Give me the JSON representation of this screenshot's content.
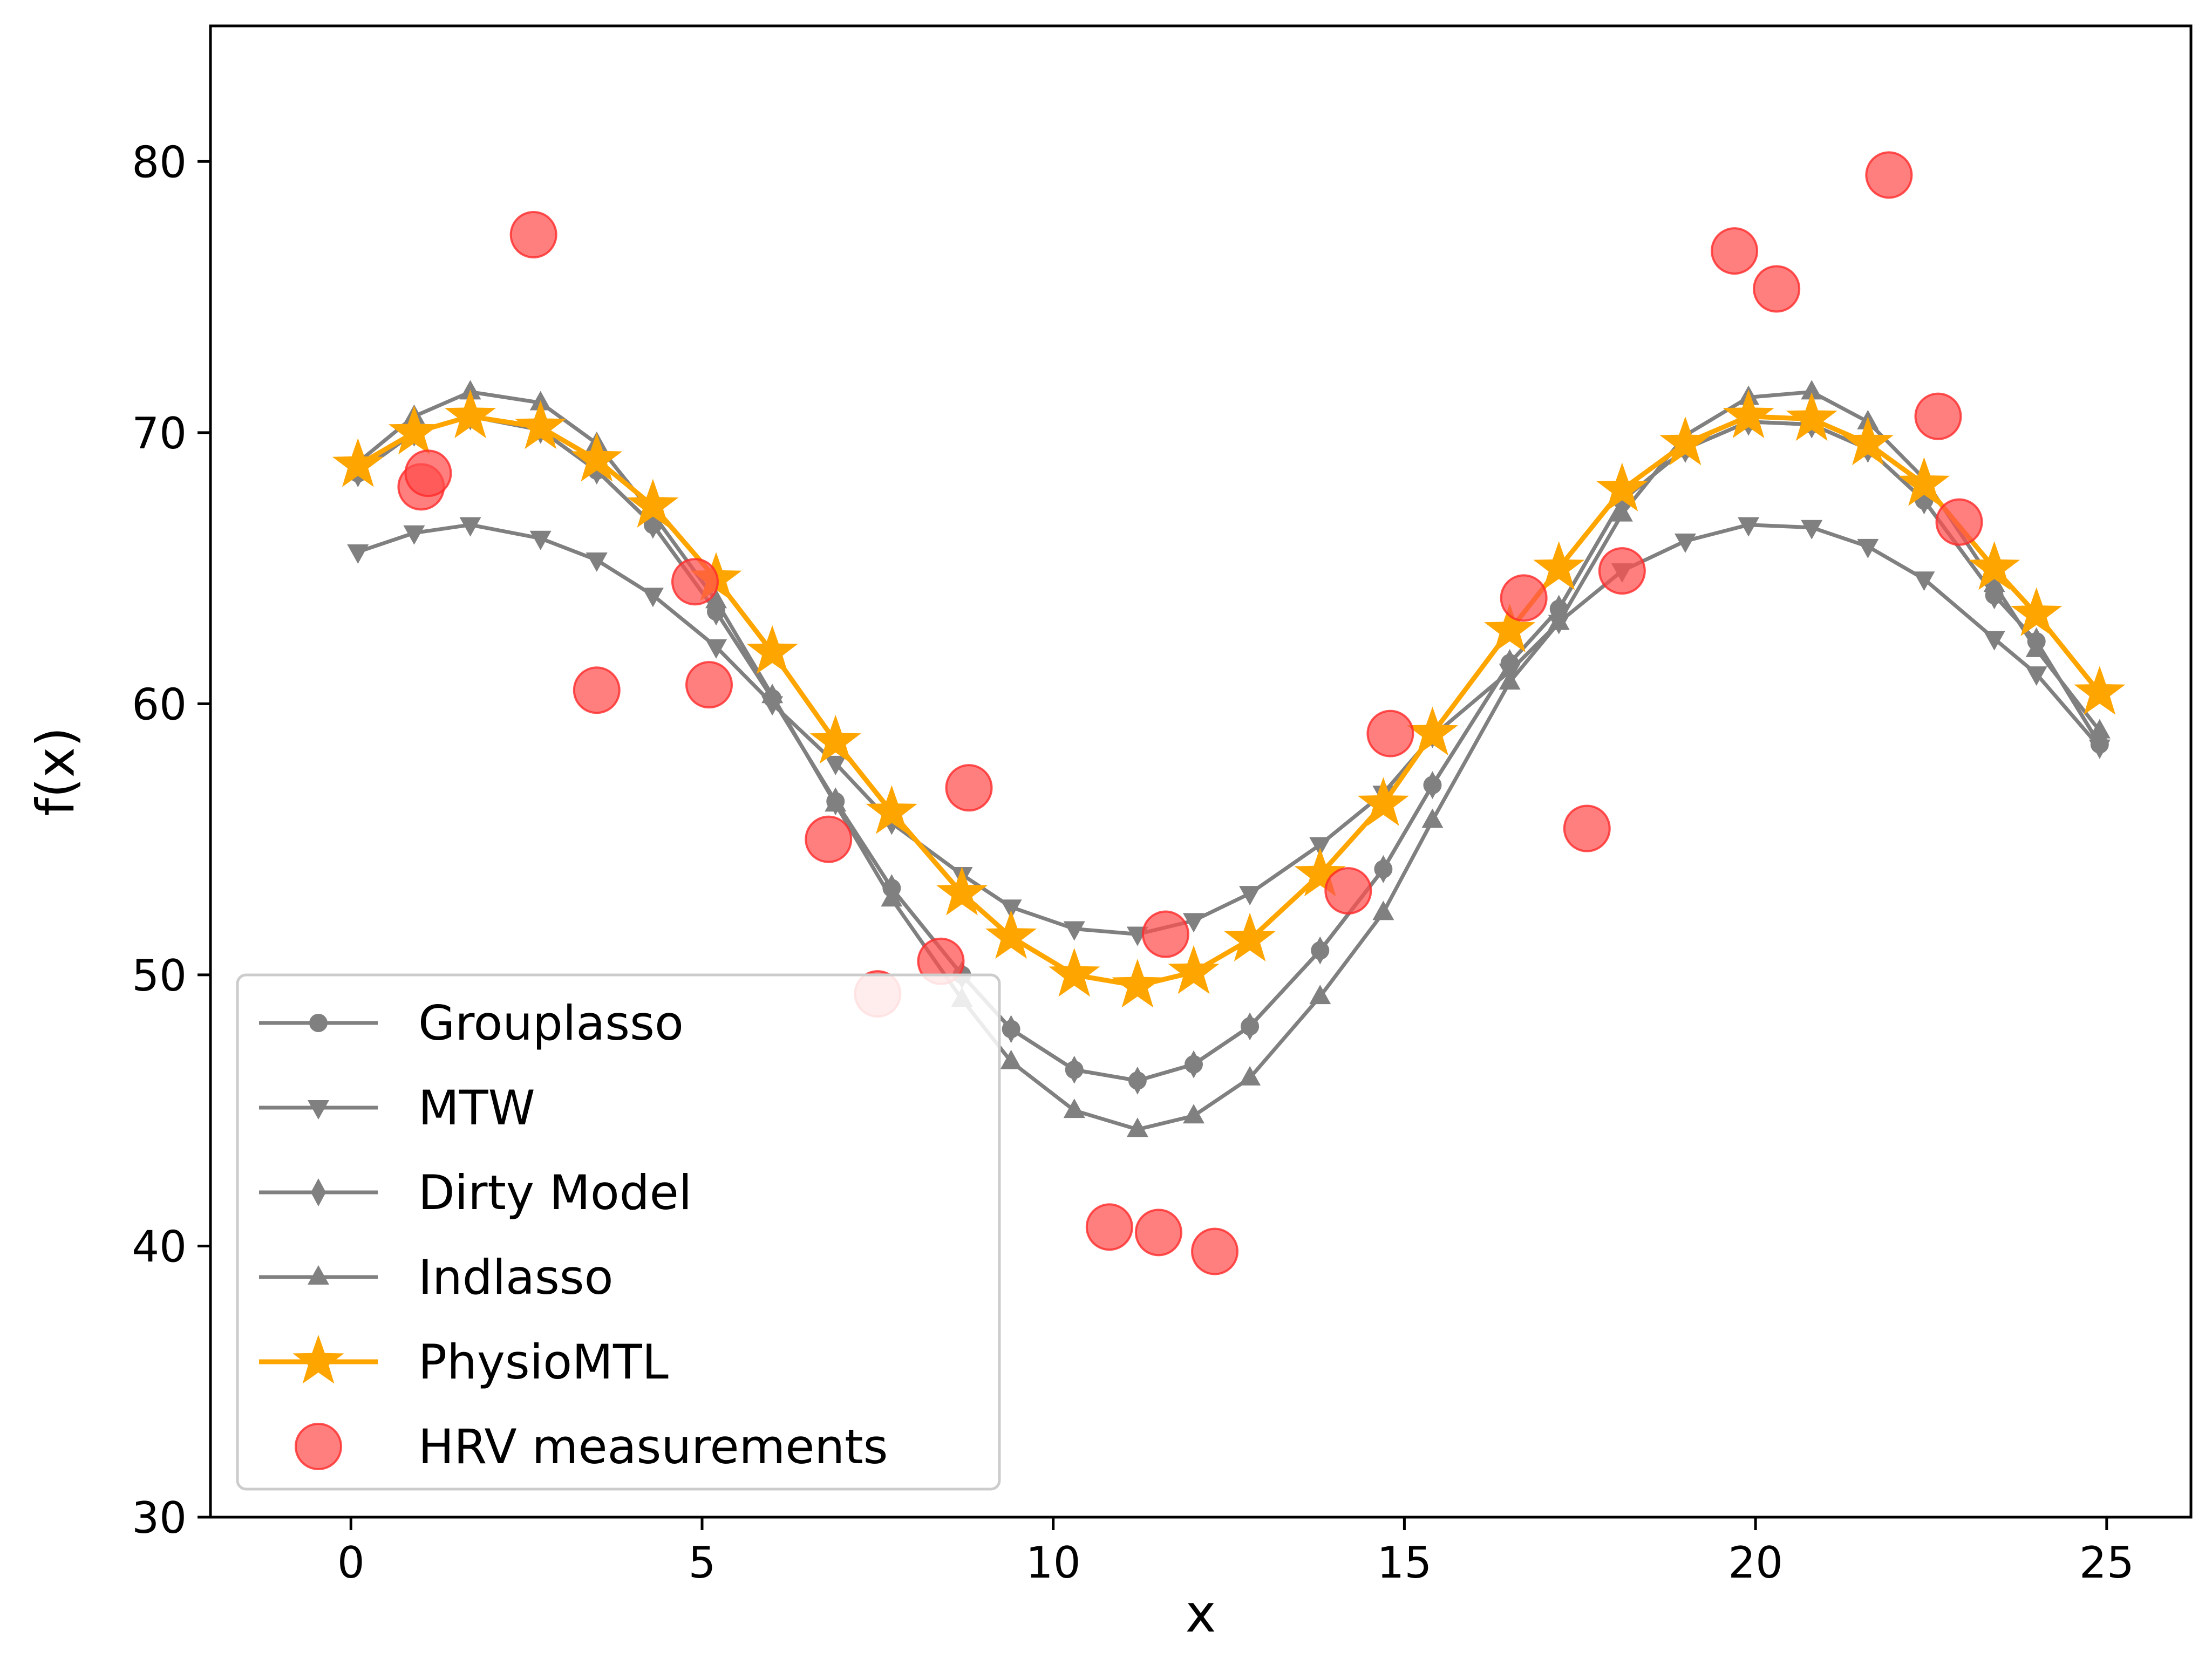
{
  "chart_data": {
    "type": "line",
    "title": "",
    "xlabel": "x",
    "ylabel": "f(x)",
    "xlim": [
      -2,
      26.2
    ],
    "ylim": [
      30,
      85
    ],
    "xticks": [
      0,
      5,
      10,
      15,
      20,
      25
    ],
    "yticks": [
      30,
      40,
      50,
      60,
      70,
      80
    ],
    "xtick_labels": [
      "0",
      "5",
      "10",
      "15",
      "20",
      "25"
    ],
    "ytick_labels": [
      "30",
      "40",
      "50",
      "60",
      "70",
      "80"
    ],
    "grid": false,
    "legend_position": "lower-left",
    "x": [
      0.1,
      0.9,
      1.7,
      2.7,
      3.5,
      4.3,
      5.2,
      6.0,
      6.9,
      7.7,
      8.7,
      9.4,
      10.3,
      11.2,
      12.0,
      12.8,
      13.8,
      14.7,
      15.4,
      16.5,
      17.2,
      18.1,
      19.0,
      19.9,
      20.8,
      21.6,
      22.4,
      23.4,
      24.0,
      24.9
    ],
    "series": [
      {
        "name": "Grouplasso",
        "marker": "circle",
        "color": "#808080",
        "values": [
          68.5,
          70.0,
          70.6,
          70.1,
          68.6,
          66.6,
          63.4,
          60.2,
          56.4,
          53.2,
          50.0,
          48.0,
          46.5,
          46.1,
          46.7,
          48.1,
          50.9,
          53.9,
          57.0,
          61.5,
          63.5,
          67.5,
          69.4,
          70.4,
          70.3,
          69.4,
          67.5,
          64.0,
          62.3,
          58.5
        ]
      },
      {
        "name": "MTW",
        "marker": "triangle-down",
        "color": "#808080",
        "values": [
          65.6,
          66.3,
          66.6,
          66.1,
          65.3,
          64.0,
          62.1,
          60.0,
          57.8,
          55.6,
          53.7,
          52.5,
          51.7,
          51.5,
          52.0,
          53.0,
          54.8,
          56.7,
          58.8,
          61.2,
          63.0,
          64.9,
          66.0,
          66.6,
          66.5,
          65.8,
          64.6,
          62.4,
          61.1,
          58.4
        ]
      },
      {
        "name": "Dirty Model",
        "marker": "diamond",
        "color": "#808080",
        "values": [
          68.5,
          70.0,
          70.6,
          70.1,
          68.6,
          66.6,
          63.4,
          60.2,
          56.4,
          53.2,
          50.0,
          48.0,
          46.5,
          46.1,
          46.7,
          48.1,
          50.9,
          53.9,
          57.0,
          61.5,
          63.5,
          67.5,
          69.4,
          70.4,
          70.3,
          69.4,
          67.5,
          64.0,
          62.3,
          58.5
        ]
      },
      {
        "name": "Indlasso",
        "marker": "triangle-up",
        "color": "#808080",
        "values": [
          68.9,
          70.6,
          71.5,
          71.1,
          69.6,
          67.0,
          63.8,
          60.3,
          56.3,
          52.8,
          49.1,
          46.8,
          45.0,
          44.3,
          44.8,
          46.2,
          49.2,
          52.3,
          55.7,
          60.8,
          63.0,
          67.0,
          69.9,
          71.3,
          71.5,
          70.4,
          68.3,
          64.4,
          62.0,
          59.0
        ]
      },
      {
        "name": "PhysioMTL",
        "marker": "star",
        "color": "#ffa500",
        "values": [
          68.8,
          70.0,
          70.6,
          70.2,
          69.0,
          67.3,
          64.6,
          61.9,
          58.6,
          56.0,
          53.0,
          51.4,
          50.0,
          49.6,
          50.1,
          51.3,
          53.7,
          56.3,
          58.9,
          62.7,
          65.0,
          67.9,
          69.6,
          70.6,
          70.5,
          69.6,
          68.1,
          65.0,
          63.3,
          60.4
        ]
      }
    ],
    "scatter": {
      "name": "HRV measurements",
      "color": "#ff4d4d",
      "points": [
        {
          "x": 1.0,
          "y": 68.0
        },
        {
          "x": 1.1,
          "y": 68.5
        },
        {
          "x": 2.6,
          "y": 77.3
        },
        {
          "x": 3.5,
          "y": 60.5
        },
        {
          "x": 4.9,
          "y": 64.5
        },
        {
          "x": 5.1,
          "y": 60.7
        },
        {
          "x": 6.8,
          "y": 55.0
        },
        {
          "x": 7.5,
          "y": 49.3
        },
        {
          "x": 8.4,
          "y": 50.5
        },
        {
          "x": 8.8,
          "y": 56.9
        },
        {
          "x": 10.8,
          "y": 40.7
        },
        {
          "x": 11.5,
          "y": 40.5
        },
        {
          "x": 11.6,
          "y": 51.5
        },
        {
          "x": 12.3,
          "y": 39.8
        },
        {
          "x": 14.2,
          "y": 53.1
        },
        {
          "x": 14.8,
          "y": 58.9
        },
        {
          "x": 16.7,
          "y": 63.9
        },
        {
          "x": 17.6,
          "y": 55.4
        },
        {
          "x": 18.1,
          "y": 64.9
        },
        {
          "x": 19.7,
          "y": 76.7
        },
        {
          "x": 20.3,
          "y": 75.3
        },
        {
          "x": 21.9,
          "y": 79.5
        },
        {
          "x": 22.6,
          "y": 70.6
        },
        {
          "x": 22.9,
          "y": 66.7
        }
      ]
    },
    "legend": [
      "Grouplasso",
      "MTW",
      "Dirty Model",
      "Indlasso",
      "PhysioMTL",
      "HRV measurements"
    ]
  }
}
